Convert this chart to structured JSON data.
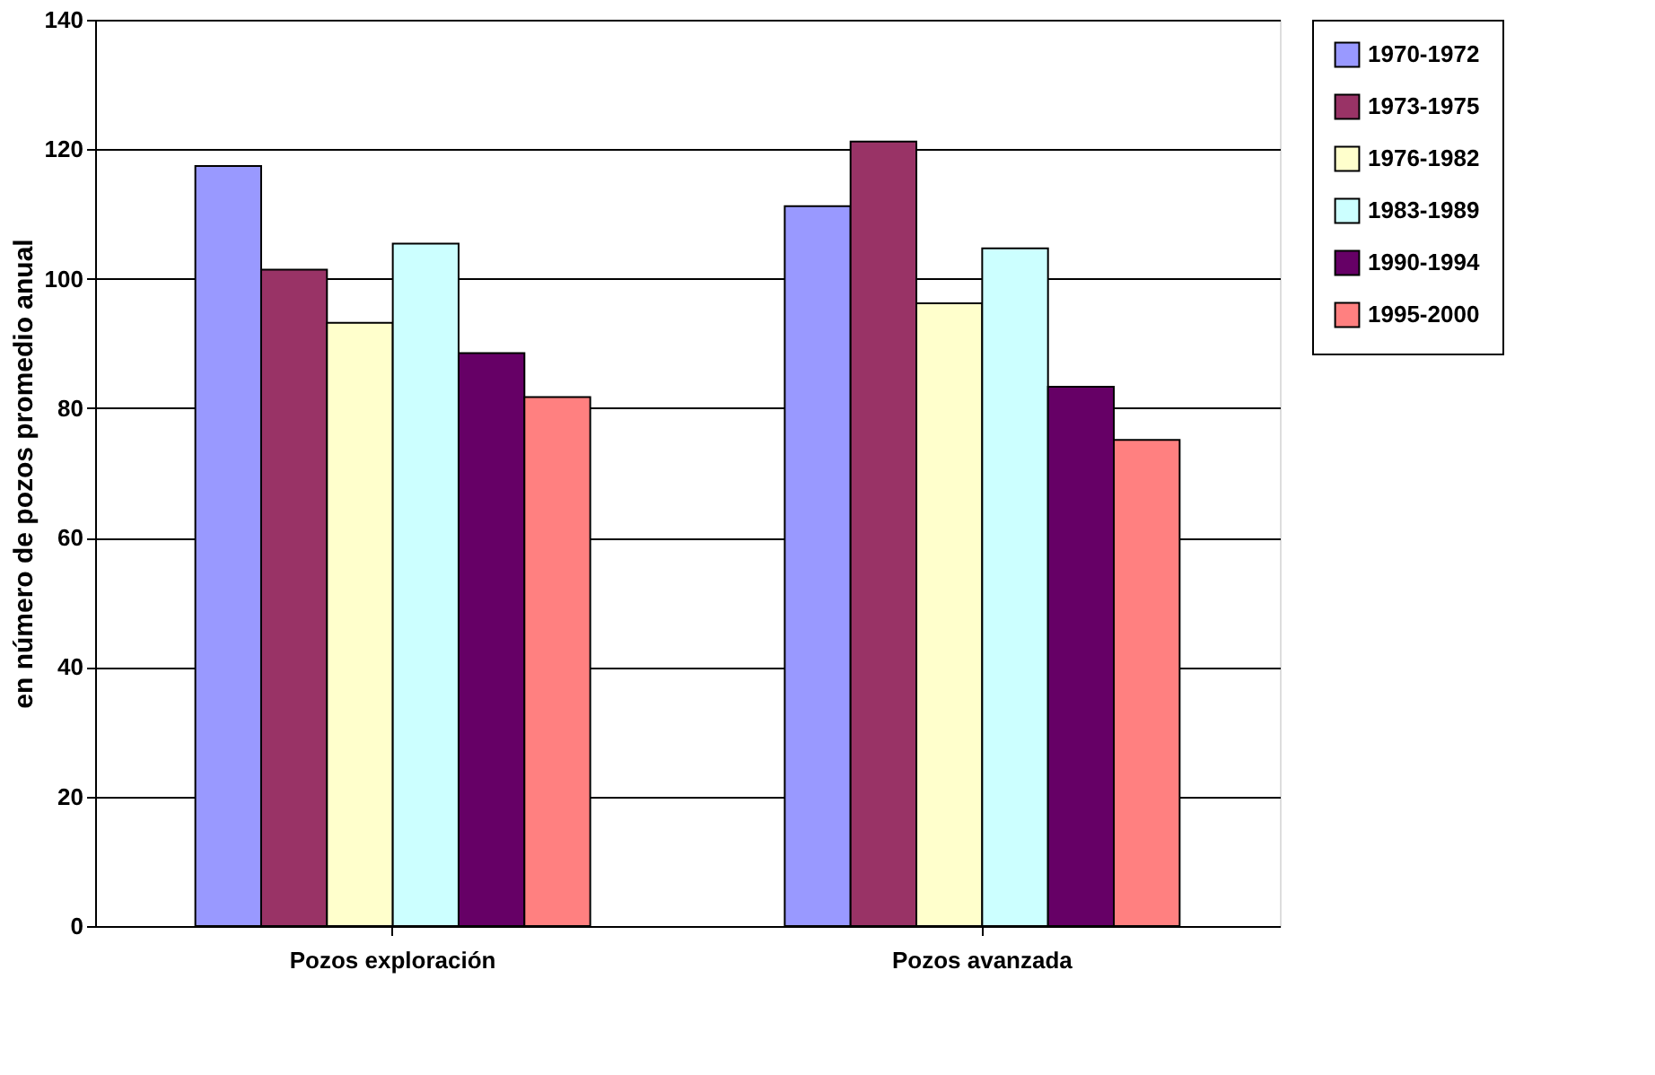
{
  "chart_data": {
    "type": "bar",
    "ylabel": "en número de pozos promedio anual",
    "categories": [
      "Pozos exploración",
      "Pozos avanzada"
    ],
    "series": [
      {
        "name": "1970-1972",
        "color": "#9999ff",
        "values": [
          117.4,
          111.2
        ]
      },
      {
        "name": "1973-1975",
        "color": "#993366",
        "values": [
          101.4,
          121.2
        ]
      },
      {
        "name": "1976-1982",
        "color": "#ffffcc",
        "values": [
          93.2,
          96.2
        ]
      },
      {
        "name": "1983-1989",
        "color": "#ccffff",
        "values": [
          105.4,
          104.7
        ]
      },
      {
        "name": "1990-1994",
        "color": "#660066",
        "values": [
          88.5,
          83.3
        ]
      },
      {
        "name": "1995-2000",
        "color": "#ff8080",
        "values": [
          81.7,
          75.1
        ]
      }
    ],
    "ylim": [
      0,
      140
    ],
    "yticks": [
      0,
      20,
      40,
      60,
      80,
      100,
      120,
      140
    ],
    "grid": "y",
    "legend": "right"
  }
}
